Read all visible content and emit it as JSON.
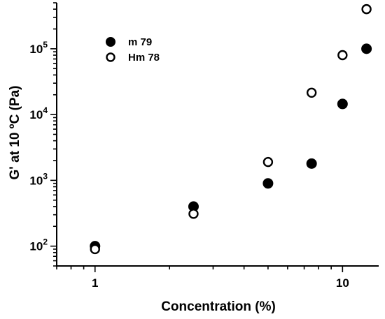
{
  "chart_data": {
    "type": "scatter",
    "xlabel": "Concentration (%)",
    "ylabel": "G' at 10 ºC (Pa)",
    "x_scale": "log",
    "y_scale": "log",
    "xlim": [
      0.7,
      14
    ],
    "ylim": [
      50,
      500000
    ],
    "x_ticks": [
      {
        "value": 1,
        "label": "1"
      },
      {
        "value": 10,
        "label": "10"
      }
    ],
    "y_ticks": [
      {
        "value": 100,
        "base": "10",
        "exp": "2"
      },
      {
        "value": 1000,
        "base": "10",
        "exp": "3"
      },
      {
        "value": 10000,
        "base": "10",
        "exp": "4"
      },
      {
        "value": 100000,
        "base": "10",
        "exp": "5"
      }
    ],
    "grid": false,
    "legend_position": "top-left",
    "series": [
      {
        "name": "m 79",
        "marker": "filled-circle",
        "color": "#000000",
        "x": [
          1,
          2.5,
          5,
          7.5,
          10,
          12.5
        ],
        "y": [
          100,
          400,
          900,
          1800,
          14500,
          100000
        ]
      },
      {
        "name": "Hm 78",
        "marker": "open-circle",
        "color": "#000000",
        "x": [
          1,
          2.5,
          5,
          7.5,
          10,
          12.5
        ],
        "y": [
          90,
          310,
          1900,
          21500,
          80000,
          400000
        ]
      }
    ]
  }
}
